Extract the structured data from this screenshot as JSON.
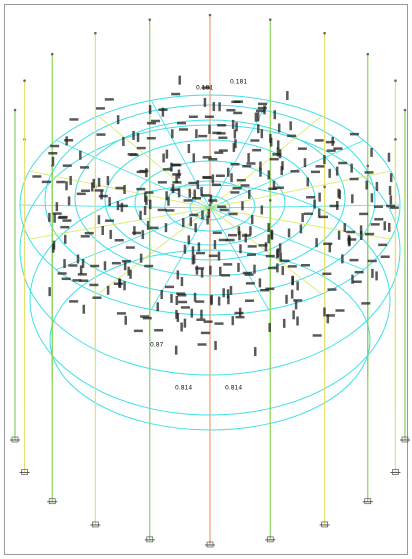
{
  "labels": [
    "0.181",
    "0.814",
    "0.87",
    "0.814",
    "0.181"
  ]
}
